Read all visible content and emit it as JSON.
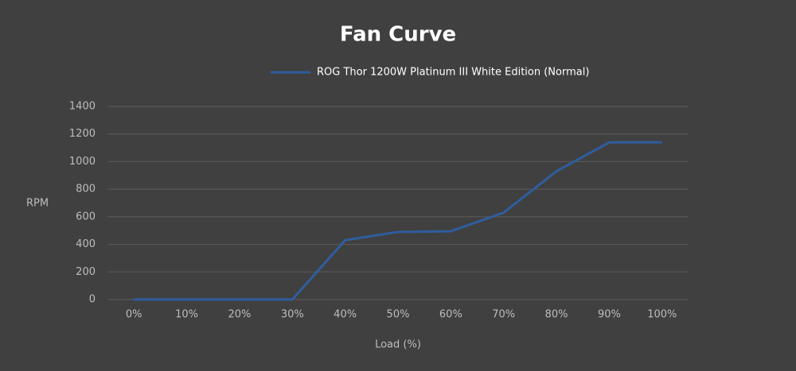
{
  "chart_data": {
    "type": "line",
    "title": "Fan Curve",
    "x_label": "Load (%)",
    "y_label": "RPM",
    "categories": [
      "0%",
      "10%",
      "20%",
      "30%",
      "40%",
      "50%",
      "60%",
      "70%",
      "80%",
      "90%",
      "100%"
    ],
    "series": [
      {
        "name": "ROG Thor 1200W Platinum III White Edition (Normal)",
        "color": "#2f5d9e",
        "values": [
          0,
          0,
          0,
          0,
          430,
          490,
          495,
          630,
          930,
          1140,
          1140
        ]
      }
    ],
    "ylim": [
      0,
      1400
    ],
    "yticks": [
      0,
      200,
      400,
      600,
      800,
      1000,
      1200,
      1400
    ],
    "grid": true
  }
}
